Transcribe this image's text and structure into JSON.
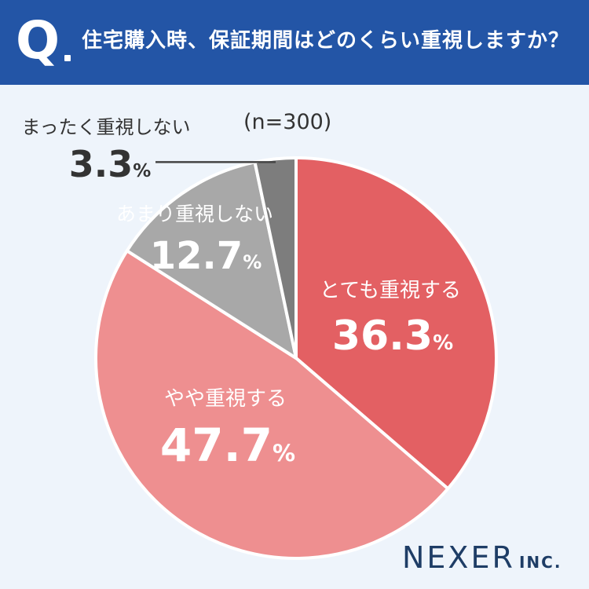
{
  "header": {
    "q_mark": "Q",
    "question": "住宅購入時、保証期間はどのくらい重視しますか？"
  },
  "sample_size": "(n=300)",
  "logo": {
    "name": "NEXER",
    "suffix": "INC."
  },
  "colors": {
    "header_bg": "#2355a6",
    "page_bg": "#eef4fb"
  },
  "chart_data": {
    "type": "pie",
    "title": "住宅購入時、保証期間はどのくらい重視しますか？",
    "start": "12 o'clock, clockwise",
    "slices": [
      {
        "label": "とても重視する",
        "value": 36.3,
        "display": "36.3",
        "color": "#e36063",
        "text_color": "#ffffff"
      },
      {
        "label": "やや重視する",
        "value": 47.7,
        "display": "47.7",
        "color": "#ee8f90",
        "text_color": "#ffffff"
      },
      {
        "label": "あまり重視しない",
        "value": 12.7,
        "display": "12.7",
        "color": "#a8a8a8",
        "text_color": "#ffffff"
      },
      {
        "label": "まったく重視しない",
        "value": 3.3,
        "display": "3.3",
        "color": "#7d7d7d",
        "text_color": "#333333"
      }
    ],
    "unit": "%"
  }
}
